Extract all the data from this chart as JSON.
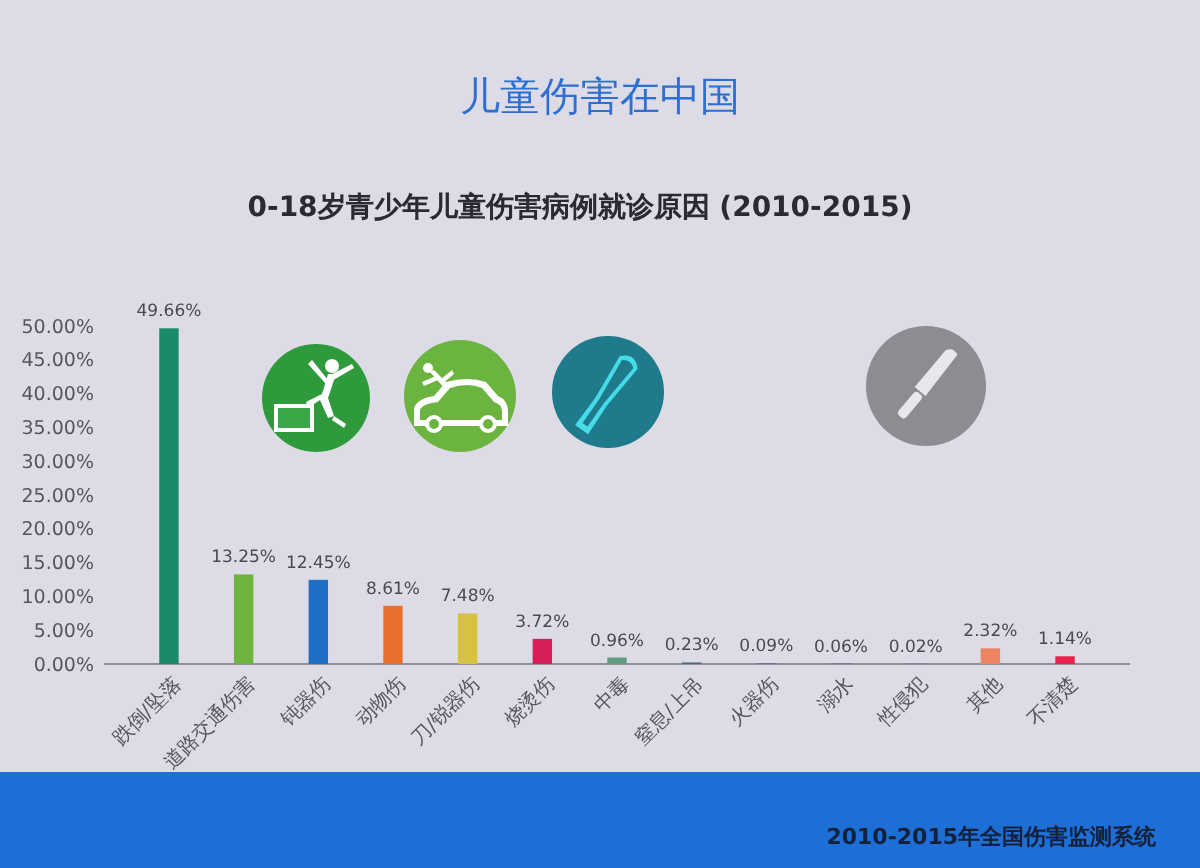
{
  "chart_data": {
    "type": "bar",
    "title": "儿童伤害在中国",
    "subtitle": "0-18岁青少年儿童伤害病例就诊原因 (2010-2015)",
    "categories": [
      "跌倒/坠落",
      "道路交通伤害",
      "钝器伤",
      "动物伤",
      "刀/锐器伤",
      "烧烫伤",
      "中毒",
      "窒息/上吊",
      "火器伤",
      "溺水",
      "性侵犯",
      "其他",
      "不清楚"
    ],
    "values": [
      49.66,
      13.25,
      12.45,
      8.61,
      7.48,
      3.72,
      0.96,
      0.23,
      0.09,
      0.06,
      0.02,
      2.32,
      1.14
    ],
    "colors": [
      "#1b8a6b",
      "#6cb43f",
      "#1f6fc9",
      "#e8702e",
      "#d6c23e",
      "#d81e56",
      "#5f9e80",
      "#5a6382",
      "#5a6382",
      "#5a6382",
      "#5a6382",
      "#ec8462",
      "#e8204c"
    ],
    "value_labels": [
      "49.66%",
      "13.25%",
      "12.45%",
      "8.61%",
      "7.48%",
      "3.72%",
      "0.96%",
      "0.23%",
      "0.09%",
      "0.06%",
      "0.02%",
      "2.32%",
      "1.14%"
    ],
    "ylim": [
      0,
      50
    ],
    "yticks": [
      {
        "value": 0,
        "label": "0.00%"
      },
      {
        "value": 5,
        "label": "5.00%"
      },
      {
        "value": 10,
        "label": "10.00%"
      },
      {
        "value": 15,
        "label": "15.00%"
      },
      {
        "value": 20,
        "label": "20.00%"
      },
      {
        "value": 25,
        "label": "25.00%"
      },
      {
        "value": 30,
        "label": "30.00%"
      },
      {
        "value": 35,
        "label": "35.00%"
      },
      {
        "value": 40,
        "label": "40.00%"
      },
      {
        "value": 45,
        "label": "45.00%"
      },
      {
        "value": 50,
        "label": "50.00%"
      }
    ],
    "annotations": [
      "2010-2015年全国伤害监测系统"
    ]
  }
}
